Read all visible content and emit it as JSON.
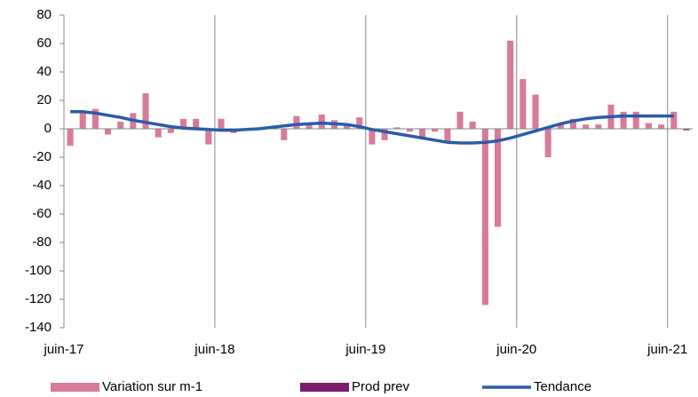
{
  "chart_data": {
    "type": "bar_line",
    "categories": [
      "juin-17",
      null,
      null,
      null,
      null,
      null,
      null,
      null,
      null,
      null,
      null,
      null,
      "juin-18",
      null,
      null,
      null,
      null,
      null,
      null,
      null,
      null,
      null,
      null,
      null,
      "juin-19",
      null,
      null,
      null,
      null,
      null,
      null,
      null,
      null,
      null,
      null,
      null,
      "juin-20",
      null,
      null,
      null,
      null,
      null,
      null,
      null,
      null,
      null,
      null,
      null,
      "juin-21",
      null
    ],
    "series": [
      {
        "name": "Variation sur m-1",
        "type": "bar",
        "color": "#d87a9b",
        "values": [
          -12,
          11,
          14,
          -4,
          5,
          11,
          25,
          -6,
          -3,
          7,
          7,
          -11,
          7,
          -3,
          -1,
          0,
          1,
          -8,
          9,
          4,
          10,
          6,
          3,
          8,
          -11,
          -8,
          1,
          -2,
          -7,
          -2,
          -9,
          12,
          5,
          -124,
          -69,
          62,
          35,
          24,
          -20,
          4,
          7,
          3,
          3,
          17,
          12,
          12,
          4,
          3,
          12,
          null
        ]
      },
      {
        "name": "Prod prev",
        "type": "bar",
        "color": "#7b1a6e",
        "values": [
          null,
          null,
          null,
          null,
          null,
          null,
          null,
          null,
          null,
          null,
          null,
          null,
          null,
          null,
          null,
          null,
          null,
          null,
          null,
          null,
          null,
          null,
          null,
          null,
          null,
          null,
          null,
          null,
          null,
          null,
          null,
          null,
          null,
          null,
          null,
          null,
          null,
          null,
          null,
          null,
          null,
          null,
          null,
          null,
          null,
          null,
          null,
          null,
          null,
          -1
        ]
      },
      {
        "name": "Tendance",
        "type": "line",
        "color": "#2a5ca8",
        "values": [
          12,
          12,
          11,
          9.5,
          8,
          6,
          4.5,
          3,
          1.5,
          0.5,
          0,
          -0.5,
          -1,
          -1,
          -0.5,
          0,
          1,
          2,
          3,
          3.5,
          4,
          3.5,
          3,
          1.5,
          -0.5,
          -2,
          -3.5,
          -5,
          -6.5,
          -8,
          -9.5,
          -10,
          -10,
          -9.5,
          -8.5,
          -6.5,
          -4,
          -1.5,
          1,
          3.5,
          5.5,
          7,
          8,
          8.5,
          9,
          9,
          9,
          9,
          9,
          null
        ]
      }
    ],
    "ylim": [
      -140,
      80
    ],
    "yticks": [
      -140,
      -120,
      -100,
      -80,
      -60,
      -40,
      -20,
      0,
      20,
      40,
      60,
      80
    ],
    "legend": "bottom"
  }
}
